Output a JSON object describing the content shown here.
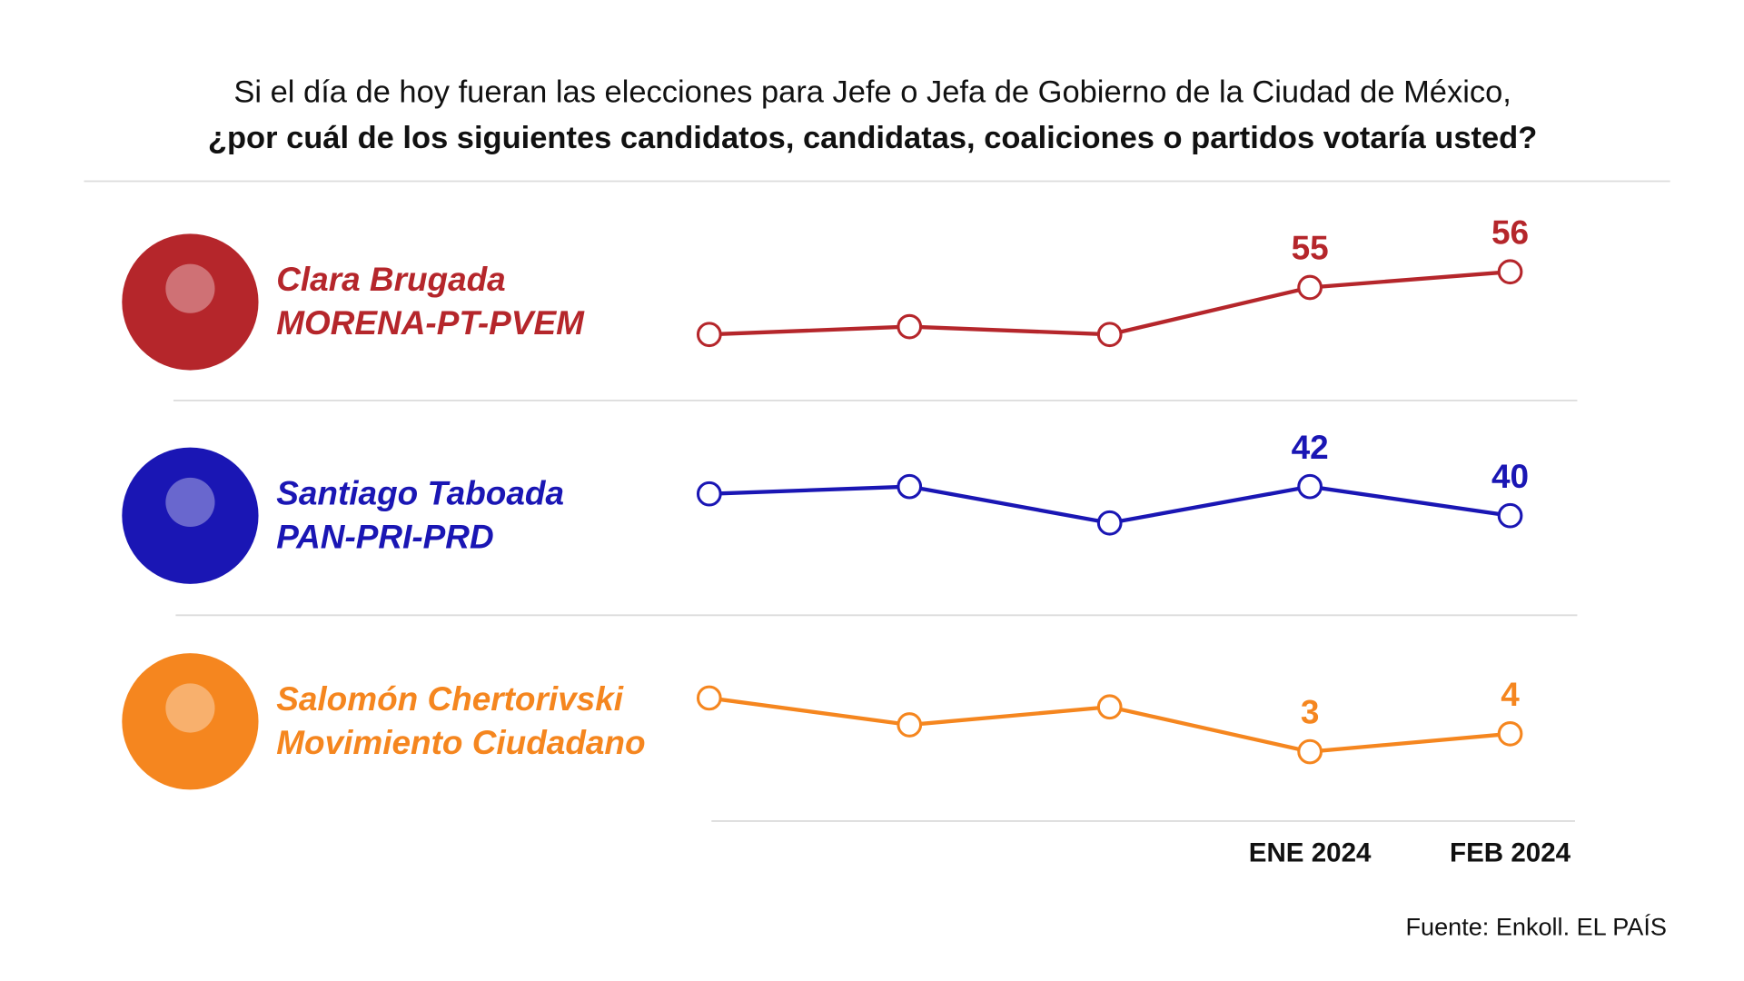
{
  "title": "Si el día de hoy fueran las elecciones para Jefe o Jefa de Gobierno de la Ciudad de México,",
  "subtitle": "¿por cuál de los siguientes candidatos, candidatas, coaliciones o partidos votaría usted?",
  "source": "Fuente: Enkoll. EL PAÍS",
  "categories": [
    null,
    null,
    null,
    "ENE 2024",
    "FEB 2024"
  ],
  "chart_data": [
    {
      "type": "line",
      "title": "Clara Brugada",
      "subtitle": "MORENA-PT-PVEM",
      "color": "#b5262b",
      "values": [
        52,
        52.5,
        52,
        55,
        56
      ],
      "value_labels": [
        null,
        null,
        null,
        "55",
        "56"
      ],
      "ylim": [
        50,
        58
      ]
    },
    {
      "type": "line",
      "title": "Santiago Taboada",
      "subtitle": "PAN-PRI-PRD",
      "color": "#1a16b4",
      "values": [
        41.5,
        42,
        39.5,
        42,
        40
      ],
      "value_labels": [
        null,
        null,
        null,
        "42",
        "40"
      ],
      "ylim": [
        38,
        44
      ]
    },
    {
      "type": "line",
      "title": "Salomón Chertorivski",
      "subtitle": "Movimiento Ciudadano",
      "color": "#f5861f",
      "values": [
        6,
        4.5,
        5.5,
        3,
        4
      ],
      "value_labels": [
        null,
        null,
        null,
        "3",
        "4"
      ],
      "ylim": [
        2,
        7
      ]
    }
  ]
}
